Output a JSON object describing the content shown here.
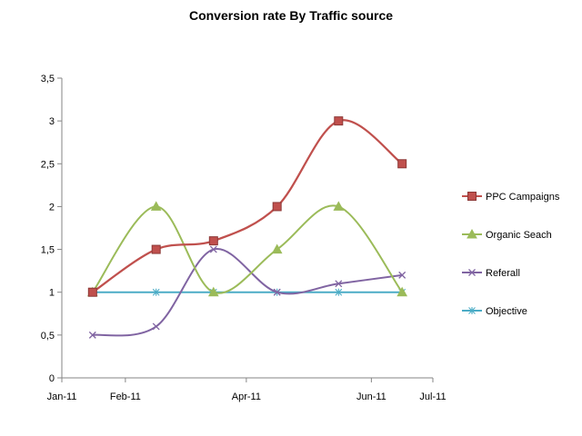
{
  "chart_data": {
    "type": "line",
    "title": "Conversion rate By Traffic source",
    "xlabel": "",
    "ylabel": "",
    "x_ticks": [
      {
        "label": "Jan-11",
        "day": 0
      },
      {
        "label": "Feb-11",
        "day": 31
      },
      {
        "label": "Apr-11",
        "day": 90
      },
      {
        "label": "Jun-11",
        "day": 151
      },
      {
        "label": "Jul-11",
        "day": 181
      }
    ],
    "xlim": [
      0,
      181
    ],
    "ylim": [
      0,
      3.5
    ],
    "y_ticks": [
      0,
      0.5,
      1,
      1.5,
      2,
      2.5,
      3,
      3.5
    ],
    "y_tick_labels": [
      "0",
      "0,5",
      "1",
      "1,5",
      "2",
      "2,5",
      "3",
      "3,5"
    ],
    "x": [
      15,
      46,
      74,
      105,
      135,
      166
    ],
    "series": [
      {
        "name": "PPC Campaigns",
        "values": [
          1,
          1.5,
          1.6,
          2,
          3,
          2.5
        ],
        "color": "#c0504d",
        "marker": "square",
        "smooth": true
      },
      {
        "name": "Organic Seach",
        "values": [
          1,
          2,
          1,
          1.5,
          2,
          1
        ],
        "color": "#9bbb59",
        "marker": "triangle",
        "smooth": true
      },
      {
        "name": "Referall",
        "values": [
          0.5,
          0.6,
          1.5,
          1,
          1.1,
          1.2
        ],
        "color": "#8064a2",
        "marker": "x",
        "smooth": true
      },
      {
        "name": "Objective",
        "values": [
          1,
          1,
          1,
          1,
          1,
          1
        ],
        "color": "#4bacc6",
        "marker": "star",
        "smooth": false
      }
    ],
    "legend_position": "right",
    "grid": false
  }
}
